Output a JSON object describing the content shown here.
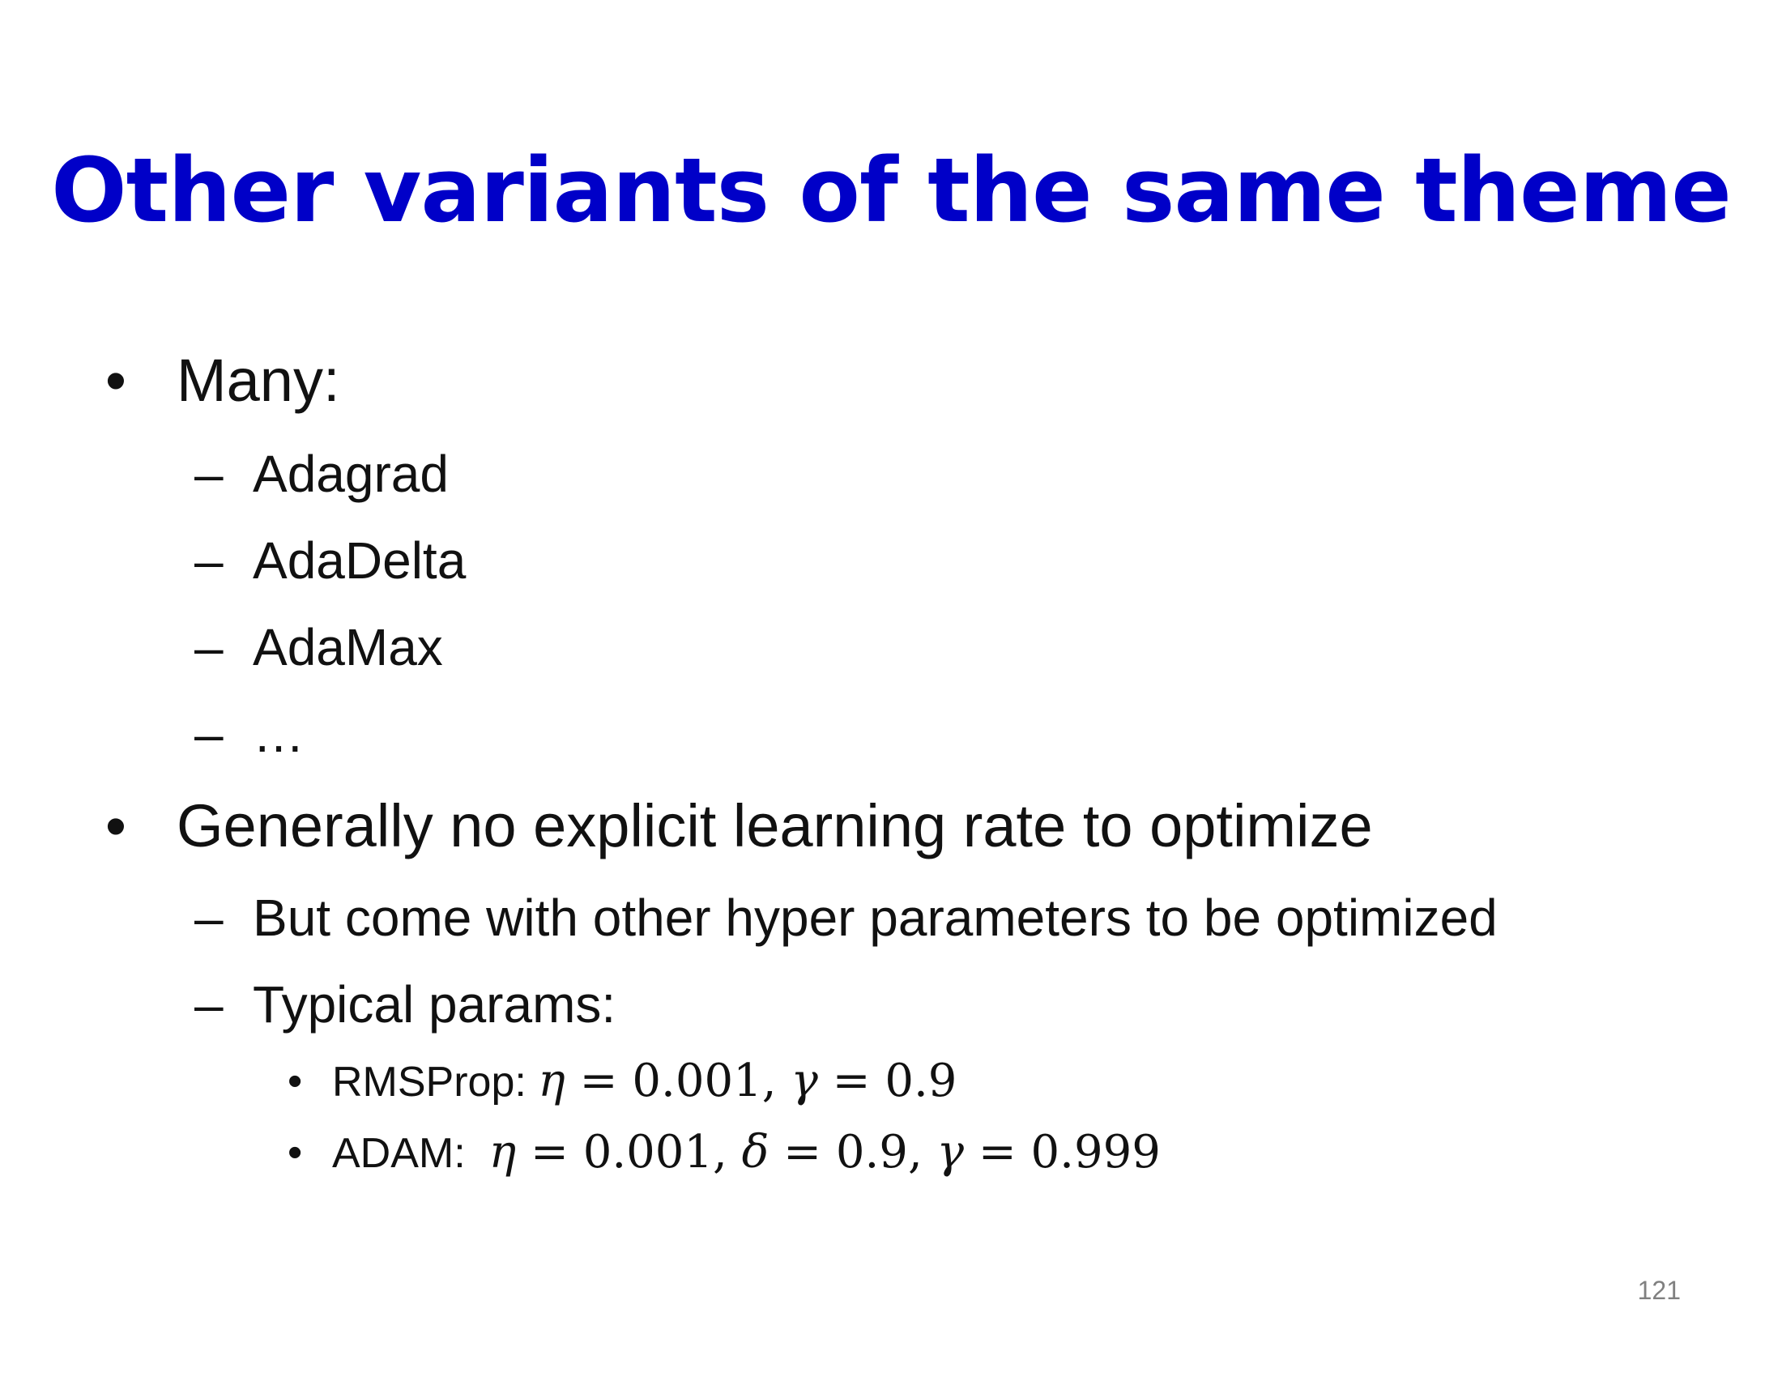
{
  "slide": {
    "title": "Other variants of the same theme",
    "bullets": [
      {
        "text": "Many:",
        "subitems": [
          "Adagrad",
          "AdaDelta",
          "AdaMax",
          "…"
        ]
      },
      {
        "text": "Generally no explicit learning rate to optimize",
        "subitems": [
          "But come with other hyper parameters to be optimized",
          "Typical params:"
        ]
      }
    ],
    "params": {
      "rmsprop_label": "RMSProp:",
      "rmsprop_eta_value": "0.001",
      "rmsprop_gamma_value": "0.9",
      "adam_label": "ADAM:",
      "adam_eta_value": "0.001",
      "adam_delta_value": "0.9",
      "adam_gamma_value": "0.999"
    },
    "markers": {
      "bullet": "•",
      "dash": "–"
    },
    "page_number": "121",
    "title_color": "#0000c8"
  }
}
